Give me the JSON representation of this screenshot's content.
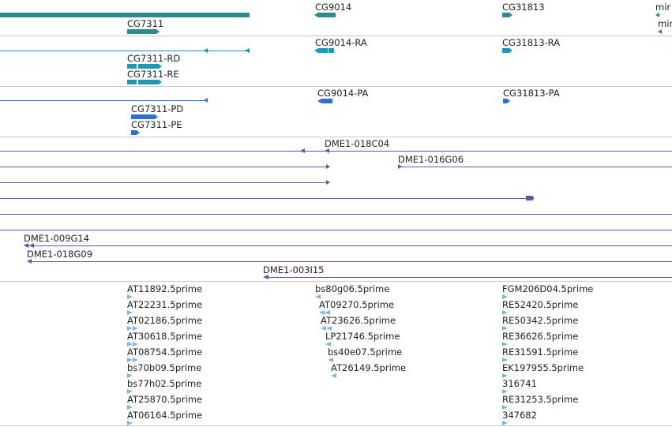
{
  "colors": {
    "gene": "#2e8b8b",
    "transcript_cds": "#1a9bb5",
    "transcript_line": "#1a8fb0",
    "protein": "#2f6fd0",
    "clone": "#6b4fa8",
    "est": "#7fb6e0",
    "separator": "#c8c8c8"
  },
  "genes": {
    "cg9014": "CG9014",
    "cg31813": "CG31813",
    "mir_top": "mir",
    "cg7311": "CG7311",
    "mir_second": "mir"
  },
  "transcripts": {
    "cg9014_ra": "CG9014-RA",
    "cg31813_ra": "CG31813-RA",
    "cg7311_rd": "CG7311-RD",
    "cg7311_re": "CG7311-RE"
  },
  "proteins": {
    "cg9014_pa": "CG9014-PA",
    "cg31813_pa": "CG31813-PA",
    "cg7311_pd": "CG7311-PD",
    "cg7311_pe": "CG7311-PE"
  },
  "clones": {
    "c018c04": "DME1-018C04",
    "c016g06": "DME1-016G06",
    "c009g14": "DME1-009G14",
    "c018g09": "DME1-018G09",
    "c003i15": "DME1-003I15"
  },
  "ests": {
    "col1": [
      "AT11892.5prime",
      "AT22231.5prime",
      "AT02186.5prime",
      "AT30618.5prime",
      "AT08754.5prime",
      "bs70b09.5prime",
      "bs77h02.5prime",
      "AT25870.5prime",
      "AT06164.5prime"
    ],
    "col2": [
      "bs80g06.5prime",
      "AT09270.5prime",
      "AT23626.5prime",
      "LP21746.5prime",
      "bs40e07.5prime",
      "AT26149.5prime"
    ],
    "col3": [
      "FGM206D04.5prime",
      "RE52420.5prime",
      "RE50342.5prime",
      "RE36626.5prime",
      "RE31591.5prime",
      "EK197955.5prime",
      "316741",
      "RE31253.5prime",
      "347682"
    ]
  }
}
